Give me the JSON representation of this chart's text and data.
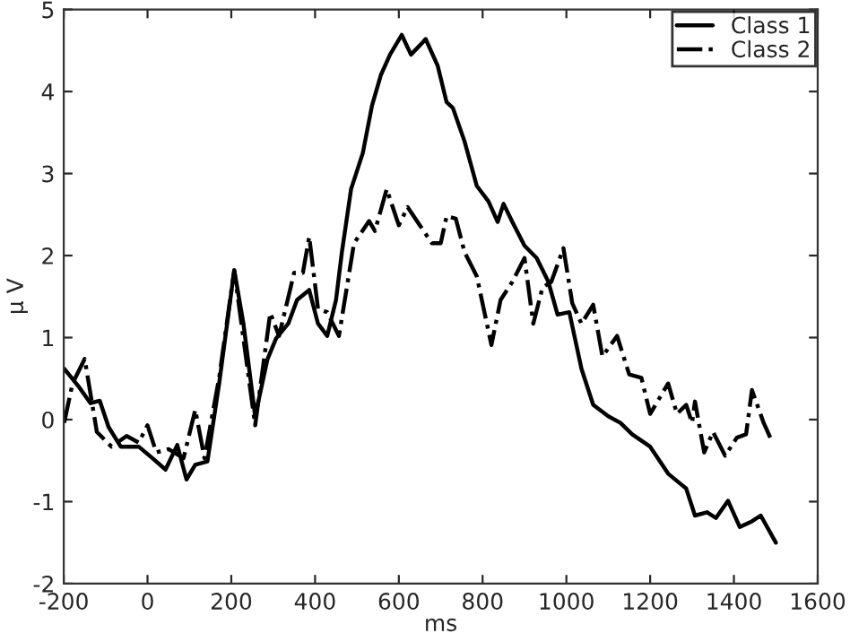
{
  "chart_data": {
    "type": "line",
    "xlabel": "ms",
    "ylabel": "μ V",
    "xlim": [
      -200,
      1600
    ],
    "ylim": [
      -2,
      5
    ],
    "xticks": [
      -200,
      0,
      200,
      400,
      600,
      800,
      1000,
      1200,
      1400,
      1600
    ],
    "yticks": [
      -2,
      -1,
      0,
      1,
      2,
      3,
      4,
      5
    ],
    "grid": false,
    "legend": "top right",
    "marker": "none",
    "series": [
      {
        "name": "Class 1",
        "color": "#000000",
        "line_style": "solid",
        "x": [
          -199,
          -164,
          -136,
          -114,
          -93,
          -64,
          -21,
          7,
          43,
          71,
          93,
          114,
          143,
          171,
          207,
          229,
          257,
          286,
          307,
          336,
          357,
          386,
          407,
          429,
          450,
          464,
          486,
          514,
          536,
          557,
          579,
          607,
          629,
          657,
          664,
          693,
          714,
          729,
          757,
          786,
          814,
          836,
          850,
          871,
          900,
          929,
          957,
          979,
          1007,
          1036,
          1064,
          1100,
          1129,
          1157,
          1200,
          1243,
          1286,
          1307,
          1336,
          1357,
          1386,
          1414,
          1443,
          1464,
          1500
        ],
        "values": [
          0.62,
          0.4,
          0.2,
          0.23,
          -0.09,
          -0.33,
          -0.33,
          -0.45,
          -0.61,
          -0.31,
          -0.73,
          -0.55,
          -0.51,
          0.44,
          1.82,
          1.17,
          0.04,
          0.73,
          0.99,
          1.17,
          1.46,
          1.58,
          1.17,
          1.02,
          1.46,
          2.04,
          2.81,
          3.25,
          3.83,
          4.2,
          4.45,
          4.69,
          4.45,
          4.6,
          4.64,
          4.31,
          3.87,
          3.8,
          3.39,
          2.85,
          2.66,
          2.41,
          2.63,
          2.41,
          2.12,
          1.97,
          1.68,
          1.28,
          1.31,
          0.62,
          0.18,
          0.04,
          -0.04,
          -0.18,
          -0.33,
          -0.66,
          -0.84,
          -1.17,
          -1.13,
          -1.2,
          -0.99,
          -1.31,
          -1.24,
          -1.17,
          -1.5
        ]
      },
      {
        "name": "Class 2",
        "color": "#000000",
        "line_style": "dashdot",
        "x": [
          -199,
          -179,
          -150,
          -121,
          -86,
          -50,
          -21,
          0,
          21,
          50,
          86,
          114,
          136,
          171,
          207,
          257,
          293,
          314,
          350,
          371,
          386,
          407,
          429,
          457,
          493,
          529,
          543,
          571,
          600,
          621,
          650,
          679,
          700,
          714,
          736,
          757,
          786,
          821,
          843,
          871,
          900,
          921,
          943,
          964,
          993,
          1014,
          1036,
          1064,
          1086,
          1121,
          1150,
          1179,
          1200,
          1243,
          1264,
          1286,
          1300,
          1307,
          1329,
          1350,
          1379,
          1407,
          1429,
          1443,
          1471,
          1493
        ],
        "values": [
          -0.04,
          0.44,
          0.74,
          -0.15,
          -0.33,
          -0.2,
          -0.28,
          -0.07,
          -0.4,
          -0.36,
          -0.47,
          0.12,
          -0.47,
          0.51,
          1.82,
          -0.07,
          1.3,
          1.02,
          1.79,
          1.79,
          2.23,
          1.35,
          1.31,
          1.02,
          2.15,
          2.42,
          2.3,
          2.81,
          2.37,
          2.59,
          2.37,
          2.15,
          2.15,
          2.48,
          2.45,
          2.04,
          1.75,
          0.91,
          1.46,
          1.68,
          1.97,
          1.17,
          1.61,
          1.68,
          2.09,
          1.42,
          1.17,
          1.4,
          0.77,
          1.02,
          0.55,
          0.51,
          0.07,
          0.44,
          0.07,
          0.18,
          -0.04,
          0.22,
          -0.4,
          -0.15,
          -0.44,
          -0.22,
          -0.18,
          0.36,
          -0.04,
          -0.29
        ]
      }
    ]
  }
}
